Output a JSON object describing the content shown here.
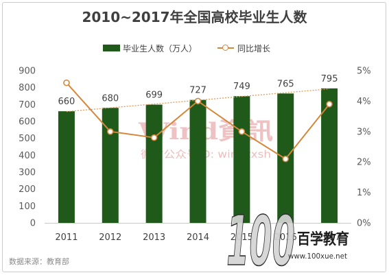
{
  "chart_data": {
    "type": "bar",
    "title": "2010~2017年全国高校毕业生人数",
    "xlabel": "",
    "ylabel": "",
    "categories": [
      "2011",
      "2012",
      "2013",
      "2014",
      "2015",
      "2016",
      "2017"
    ],
    "series": [
      {
        "name": "毕业生人数（万人）",
        "type": "bar",
        "axis": "left",
        "values": [
          660,
          680,
          699,
          727,
          749,
          765,
          795
        ],
        "color": "#1f5a1a",
        "data_labels": true,
        "trendline": "linear",
        "trendline_color": "#dd9b58"
      },
      {
        "name": "同比增长",
        "type": "line",
        "axis": "right",
        "unit": "%",
        "values": [
          4.6,
          3.0,
          2.8,
          4.0,
          3.0,
          2.1,
          3.9
        ],
        "color": "#d4873b",
        "marker": "circle"
      }
    ],
    "y_left": {
      "range": [
        0,
        900
      ],
      "ticks": [
        0,
        100,
        200,
        300,
        400,
        500,
        600,
        700,
        800,
        900
      ]
    },
    "y_right": {
      "range": [
        0,
        5
      ],
      "ticks": [
        0,
        1,
        2,
        3,
        4,
        5
      ],
      "unit": "%"
    },
    "grid": false,
    "legend_position": "top"
  },
  "source": "数据来源：教育部",
  "watermark": {
    "brand": "Wind資訊",
    "caption": "微信公众号ID: windzxsh",
    "color": "#e8adad"
  },
  "logo": {
    "mark": "100",
    "name": "百学教育",
    "url": "www.100xue.net"
  }
}
